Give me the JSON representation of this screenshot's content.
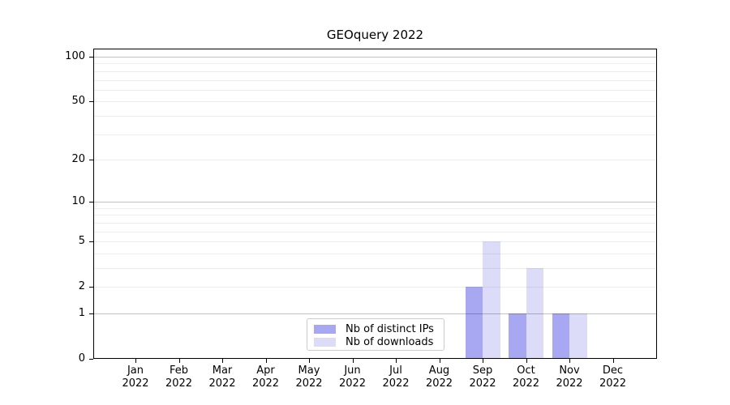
{
  "chart_data": {
    "type": "bar",
    "title": "GEOquery 2022",
    "categories": [
      "Jan",
      "Feb",
      "Mar",
      "Apr",
      "May",
      "Jun",
      "Jul",
      "Aug",
      "Sep",
      "Oct",
      "Nov",
      "Dec"
    ],
    "year_label": "2022",
    "series": [
      {
        "name": "Nb of distinct IPs",
        "color": "#a8a8f2",
        "values": [
          0,
          0,
          0,
          0,
          0,
          0,
          0,
          0,
          2,
          1,
          1,
          0
        ]
      },
      {
        "name": "Nb of downloads",
        "color": "#dcdcf8",
        "values": [
          0,
          0,
          0,
          0,
          0,
          0,
          0,
          0,
          5,
          3,
          1,
          0
        ]
      }
    ],
    "y_axis": {
      "scale": "log1p",
      "ticks": [
        0,
        1,
        2,
        5,
        10,
        20,
        50,
        100
      ],
      "decade_gridlines": [
        1,
        10,
        100
      ],
      "minor_gridlines": [
        2,
        3,
        4,
        5,
        6,
        7,
        8,
        9,
        20,
        30,
        40,
        50,
        60,
        70,
        80,
        90
      ],
      "range": [
        0,
        113
      ]
    },
    "xlabel": "",
    "ylabel": "",
    "grid": "horizontal",
    "legend_position": "bottom-center",
    "colors": {
      "background": "#ffffff",
      "spine": "#000000",
      "decade_grid": "#c2c2c2",
      "minor_grid": "#ededed",
      "legend_border": "#cccccc"
    }
  }
}
